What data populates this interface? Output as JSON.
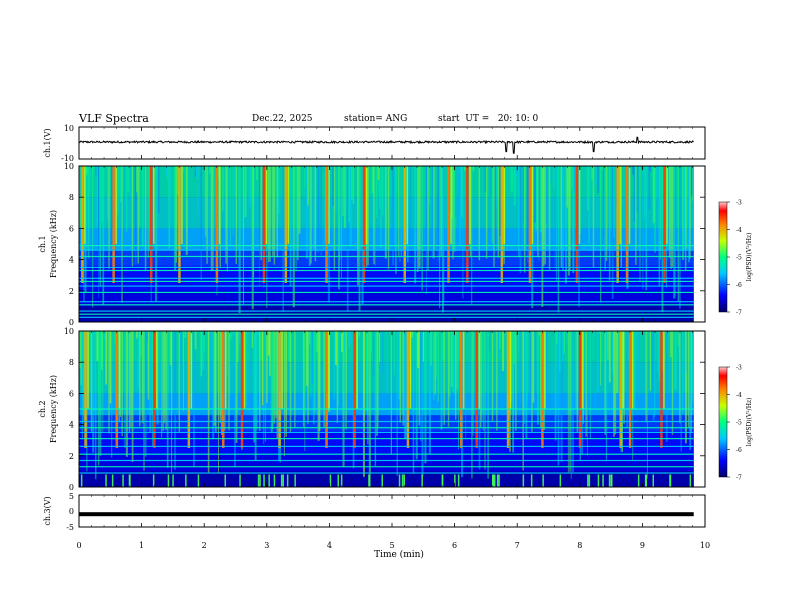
{
  "header": {
    "title": "VLF Spectra",
    "date": "Dec.22, 2025",
    "station": "station= ANG",
    "start": "start  UT =   20: 10: 0"
  },
  "chart_data": [
    {
      "type": "line",
      "panel": "ch1-waveform",
      "ylabel": "ch.1(V)",
      "ylim": [
        -10,
        10
      ],
      "yticks": [
        "10",
        "-10"
      ],
      "baseline": 0,
      "noise_amplitude": 0.6,
      "spikes": [
        {
          "t": 6.82,
          "v": -6
        },
        {
          "t": 6.95,
          "v": -7
        },
        {
          "t": 8.22,
          "v": -6
        },
        {
          "t": 8.92,
          "v": 3
        }
      ]
    },
    {
      "type": "heatmap",
      "panel": "ch1-spectrogram",
      "ylabel": "ch.1",
      "ylabel2": "Frequency (kHz)",
      "ylim": [
        0,
        10
      ],
      "yticks": [
        "0",
        "2",
        "4",
        "6",
        "8",
        "10"
      ],
      "colorbar": {
        "label": "log(PSD)(V²/Hz)",
        "range": [
          -7,
          -3
        ],
        "ticks": [
          "-3",
          "-4",
          "-5",
          "-6",
          "-7"
        ]
      },
      "horizontal_lines_khz": [
        0.3,
        0.5,
        0.7,
        1.1,
        1.3,
        1.9,
        2.3,
        2.6,
        2.8,
        3.3,
        3.5,
        4.2,
        4.6,
        4.9
      ],
      "bright_bursts_min": [
        0.05,
        0.55,
        1.15,
        1.6,
        2.2,
        2.95,
        3.3,
        3.95,
        4.55,
        5.2,
        5.9,
        6.2,
        6.75,
        7.2,
        7.95,
        8.6,
        8.75,
        9.35
      ]
    },
    {
      "type": "heatmap",
      "panel": "ch2-spectrogram",
      "ylabel": "ch.2",
      "ylabel2": "Frequency (kHz)",
      "ylim": [
        0,
        10
      ],
      "yticks": [
        "0",
        "2",
        "4",
        "6",
        "8",
        "10"
      ],
      "colorbar": {
        "label": "log(PSD)(V²/Hz)",
        "range": [
          -7,
          -3
        ],
        "ticks": [
          "-3",
          "-4",
          "-5",
          "-6",
          "-7"
        ]
      },
      "horizontal_lines_khz": [
        0.9,
        1.3,
        1.7,
        2.1,
        2.6,
        3.1,
        3.5,
        3.8,
        4.2,
        5.0
      ],
      "bright_bursts_min": [
        0.1,
        0.6,
        1.2,
        1.75,
        2.3,
        2.6,
        3.2,
        3.95,
        4.4,
        5.25,
        6.1,
        6.35,
        6.85,
        7.4,
        8.0,
        8.65,
        8.8,
        9.3
      ]
    },
    {
      "type": "line",
      "panel": "ch3-waveform",
      "ylabel": "ch.3(V)",
      "ylim": [
        -5,
        5
      ],
      "yticks": [
        "5",
        "0",
        "-5"
      ],
      "value": -1
    }
  ],
  "xaxis": {
    "xlabel": "Time  (min)",
    "xlim": [
      0,
      10
    ],
    "xticks": [
      "0",
      "1",
      "2",
      "3",
      "4",
      "5",
      "6",
      "7",
      "8",
      "9",
      "10"
    ],
    "data_end": 9.82
  },
  "colors": {
    "background": "#000066",
    "frame": "#000000"
  }
}
